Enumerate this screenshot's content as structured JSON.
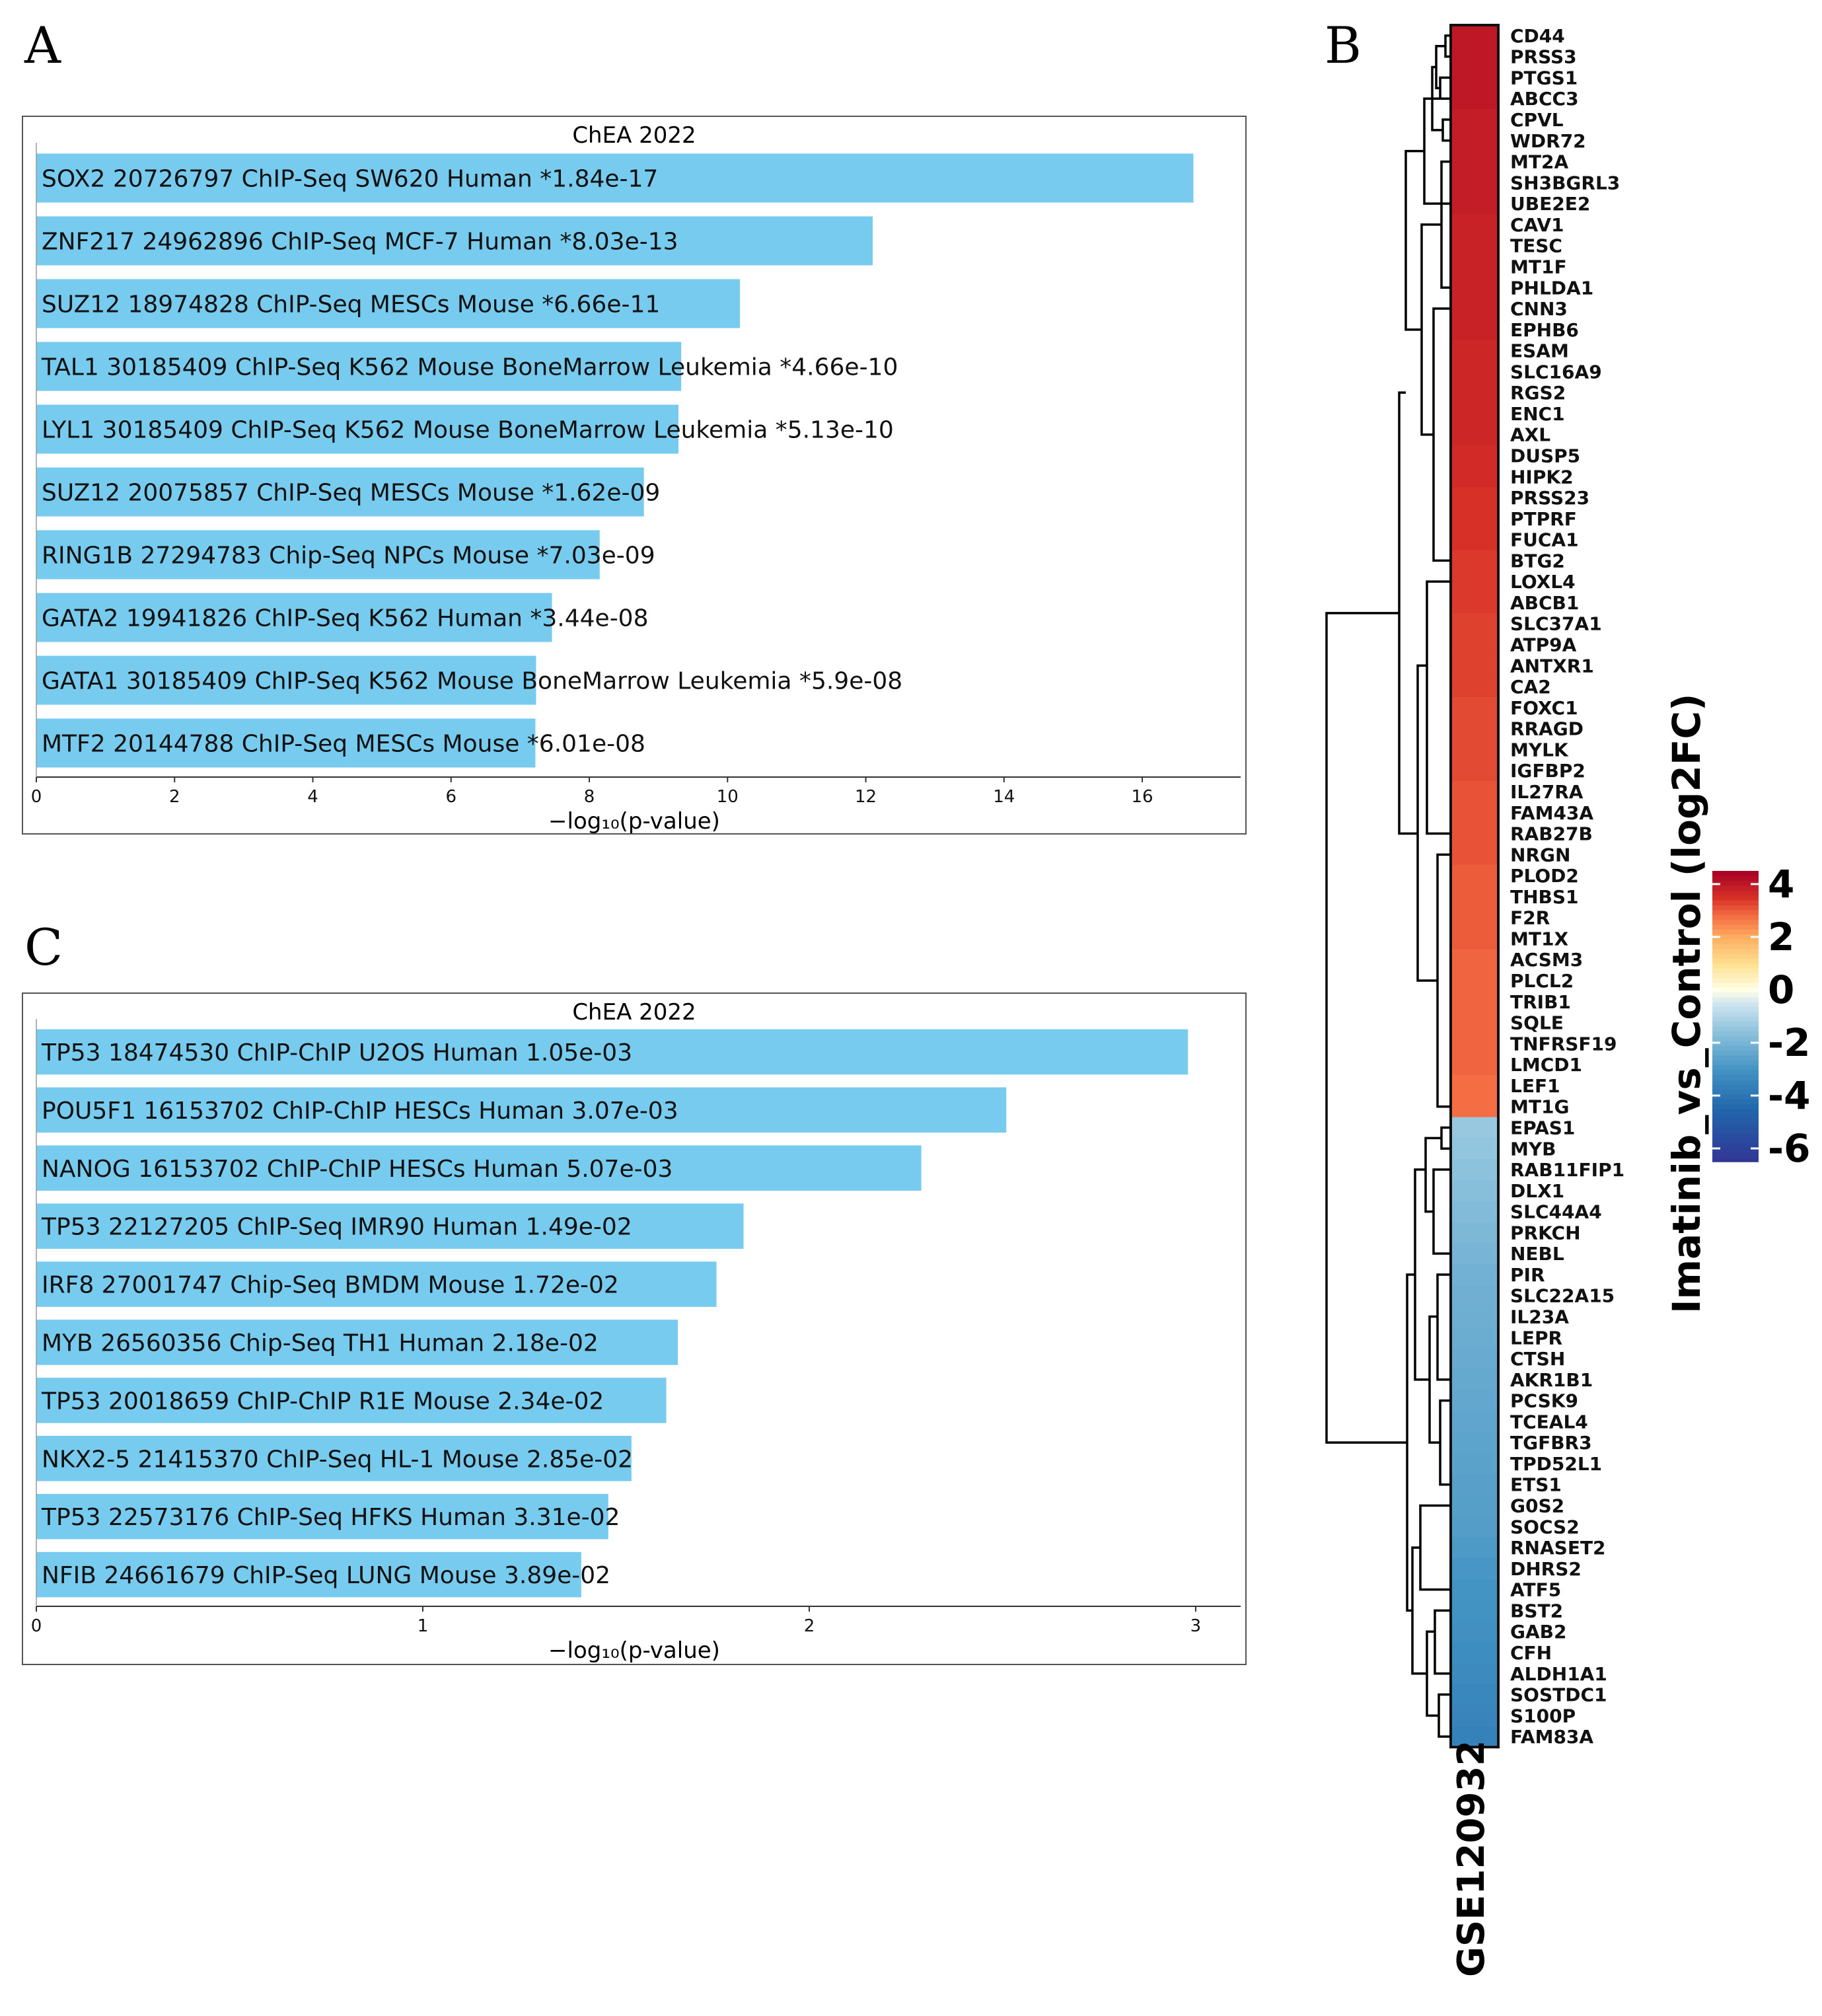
{
  "panel_labels": {
    "a": "A",
    "b": "B",
    "c": "C"
  },
  "chart_data": [
    {
      "id": "A",
      "type": "bar",
      "orientation": "horizontal",
      "title": "ChEA 2022",
      "xlabel": "−log₁₀(p-value)",
      "xlim": [
        0,
        17.5
      ],
      "xticks": [
        0,
        2,
        4,
        6,
        8,
        10,
        12,
        14,
        16
      ],
      "bar_color": "#77cbee",
      "categories": [
        "SOX2 20726797 ChIP-Seq SW620 Human  *1.84e-17",
        "ZNF217 24962896 ChIP-Seq MCF-7 Human  *8.03e-13",
        "SUZ12 18974828 ChIP-Seq MESCs Mouse  *6.66e-11",
        "TAL1 30185409 ChIP-Seq K562 Mouse BoneMarrow Leukemia  *4.66e-10",
        "LYL1 30185409 ChIP-Seq K562 Mouse BoneMarrow Leukemia  *5.13e-10",
        "SUZ12 20075857 ChIP-Seq MESCs Mouse  *1.62e-09",
        "RING1B 27294783 Chip-Seq NPCs Mouse  *7.03e-09",
        "GATA2 19941826 ChIP-Seq K562 Human  *3.44e-08",
        "GATA1 30185409 ChIP-Seq K562 Mouse BoneMarrow Leukemia  *5.9e-08",
        "MTF2 20144788 ChIP-Seq MESCs Mouse  *6.01e-08"
      ],
      "values": [
        16.74,
        12.1,
        10.18,
        9.33,
        9.29,
        8.79,
        8.15,
        7.46,
        7.23,
        7.22
      ]
    },
    {
      "id": "C",
      "type": "bar",
      "orientation": "horizontal",
      "title": "ChEA 2022",
      "xlabel": "−log₁₀(p-value)",
      "xlim": [
        0,
        3.13
      ],
      "xticks": [
        0,
        1,
        2,
        3
      ],
      "bar_color": "#77cbee",
      "categories": [
        "TP53 18474530 ChIP-ChIP U2OS Human  1.05e-03",
        "POU5F1 16153702 ChIP-ChIP HESCs Human  3.07e-03",
        "NANOG 16153702 ChIP-ChIP HESCs Human  5.07e-03",
        "TP53 22127205 ChIP-Seq IMR90 Human  1.49e-02",
        "IRF8 27001747 Chip-Seq BMDM Mouse  1.72e-02",
        "MYB 26560356 Chip-Seq TH1 Human  2.18e-02",
        "TP53 20018659 ChIP-ChIP R1E Mouse  2.34e-02",
        "NKX2-5 21415370 ChIP-Seq HL-1 Mouse  2.85e-02",
        "TP53 22573176 ChIP-Seq HFKS Human  3.31e-02",
        "NFIB 24661679 ChIP-Seq LUNG Mouse  3.89e-02"
      ],
      "values": [
        2.98,
        2.51,
        2.29,
        1.83,
        1.76,
        1.66,
        1.63,
        1.54,
        1.48,
        1.41
      ]
    },
    {
      "id": "B",
      "type": "heatmap",
      "column_label": "GSE120932",
      "colorbar_title": "Imatinib_vs_Control (log2FC)",
      "colorbar_range": [
        -6.5,
        4.5
      ],
      "colorbar_ticks": [
        4,
        2,
        0,
        -2,
        -4,
        -6
      ],
      "genes": [
        "CD44",
        "PRSS3",
        "PTGS1",
        "ABCC3",
        "CPVL",
        "WDR72",
        "MT2A",
        "SH3BGRL3",
        "UBE2E2",
        "CAV1",
        "TESC",
        "MT1F",
        "PHLDA1",
        "CNN3",
        "EPHB6",
        "ESAM",
        "SLC16A9",
        "RGS2",
        "ENC1",
        "AXL",
        "DUSP5",
        "HIPK2",
        "PRSS23",
        "PTPRF",
        "FUCA1",
        "BTG2",
        "LOXL4",
        "ABCB1",
        "SLC37A1",
        "ATP9A",
        "ANTXR1",
        "CA2",
        "FOXC1",
        "RRAGD",
        "MYLK",
        "IGFBP2",
        "IL27RA",
        "FAM43A",
        "RAB27B",
        "NRGN",
        "PLOD2",
        "THBS1",
        "F2R",
        "MT1X",
        "ACSM3",
        "PLCL2",
        "TRIB1",
        "SQLE",
        "TNFRSF19",
        "LMCD1",
        "LEF1",
        "MT1G",
        "EPAS1",
        "MYB",
        "RAB11FIP1",
        "DLX1",
        "SLC44A4",
        "PRKCH",
        "NEBL",
        "PIR",
        "SLC22A15",
        "IL23A",
        "LEPR",
        "CTSH",
        "AKR1B1",
        "PCSK9",
        "TCEAL4",
        "TGFBR3",
        "TPD52L1",
        "ETS1",
        "G0S2",
        "SOCS2",
        "RNASET2",
        "DHRS2",
        "ATF5",
        "BST2",
        "GAB2",
        "CFH",
        "ALDH1A1",
        "SOSTDC1",
        "S100P",
        "FAM83A"
      ],
      "values": [
        4.0,
        4.0,
        4.0,
        4.0,
        3.9,
        3.9,
        3.9,
        3.9,
        3.9,
        3.8,
        3.8,
        3.8,
        3.8,
        3.8,
        3.8,
        3.7,
        3.7,
        3.7,
        3.7,
        3.7,
        3.6,
        3.6,
        3.5,
        3.5,
        3.5,
        3.4,
        3.4,
        3.4,
        3.3,
        3.3,
        3.3,
        3.3,
        3.2,
        3.2,
        3.2,
        3.2,
        3.1,
        3.1,
        3.1,
        3.1,
        3.0,
        3.0,
        3.0,
        3.0,
        2.9,
        2.9,
        2.9,
        2.9,
        2.9,
        2.9,
        2.8,
        2.8,
        -1.4,
        -1.5,
        -1.6,
        -1.7,
        -1.8,
        -1.9,
        -2.0,
        -2.1,
        -2.15,
        -2.2,
        -2.25,
        -2.3,
        -2.35,
        -2.4,
        -2.45,
        -2.5,
        -2.55,
        -2.6,
        -2.65,
        -2.7,
        -2.8,
        -2.9,
        -3.0,
        -3.05,
        -3.1,
        -3.2,
        -3.3,
        -3.4,
        -3.5,
        -3.6
      ]
    }
  ]
}
